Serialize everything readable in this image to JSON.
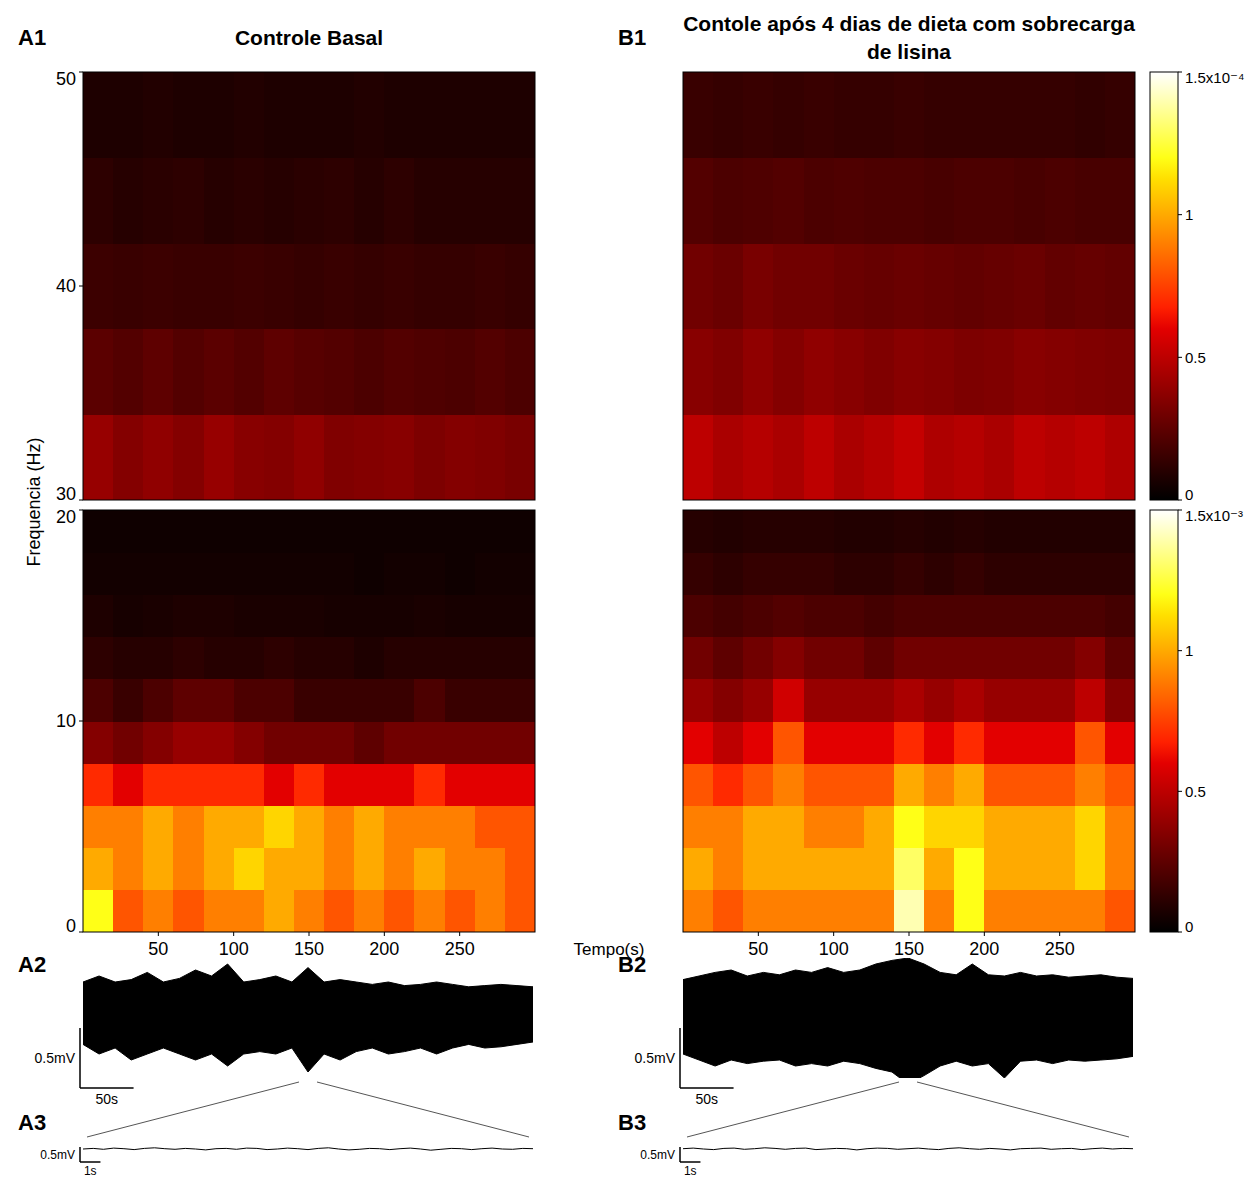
{
  "chart_data": [
    {
      "type": "heatmap",
      "panel": "A1",
      "title": "Controle Basal",
      "y_label": "Frequencia (Hz)",
      "x_label": "Tempo(s)",
      "xlim": [
        0,
        300
      ],
      "xticks": [
        50,
        100,
        150,
        200,
        250
      ],
      "x": [
        10,
        30,
        50,
        70,
        90,
        110,
        130,
        150,
        170,
        190,
        210,
        230,
        250,
        270,
        290
      ],
      "bands": [
        {
          "ylim": [
            30,
            50
          ],
          "yticks": [
            30,
            40,
            50
          ],
          "y": [
            32,
            36,
            40,
            44,
            48
          ],
          "cells": [
            [
              0.4,
              0.35,
              0.38,
              0.35,
              0.4,
              0.36,
              0.35,
              0.38,
              0.34,
              0.35,
              0.36,
              0.33,
              0.35,
              0.34,
              0.32
            ],
            [
              0.24,
              0.22,
              0.25,
              0.22,
              0.24,
              0.22,
              0.25,
              0.23,
              0.22,
              0.2,
              0.22,
              0.21,
              0.2,
              0.22,
              0.2
            ],
            [
              0.16,
              0.15,
              0.16,
              0.15,
              0.15,
              0.16,
              0.15,
              0.14,
              0.15,
              0.14,
              0.15,
              0.14,
              0.14,
              0.15,
              0.14
            ],
            [
              0.12,
              0.1,
              0.11,
              0.12,
              0.1,
              0.11,
              0.1,
              0.11,
              0.12,
              0.1,
              0.12,
              0.1,
              0.1,
              0.1,
              0.1
            ],
            [
              0.08,
              0.08,
              0.09,
              0.08,
              0.08,
              0.09,
              0.08,
              0.08,
              0.08,
              0.09,
              0.08,
              0.08,
              0.08,
              0.08,
              0.08
            ]
          ]
        },
        {
          "ylim": [
            0,
            20
          ],
          "yticks": [
            0,
            10,
            20
          ],
          "y": [
            1,
            3,
            5,
            7,
            9,
            11,
            13,
            15,
            17,
            19
          ],
          "cells": [
            [
              1.2,
              0.8,
              0.9,
              0.8,
              0.9,
              0.9,
              1.0,
              0.9,
              0.8,
              0.9,
              0.8,
              0.9,
              0.8,
              0.9,
              0.8
            ],
            [
              1.0,
              0.9,
              1.0,
              0.9,
              1.0,
              1.1,
              1.0,
              1.0,
              0.9,
              1.0,
              0.9,
              1.0,
              0.9,
              0.9,
              0.8
            ],
            [
              0.9,
              0.9,
              1.0,
              0.9,
              1.0,
              1.0,
              1.1,
              1.0,
              0.9,
              1.0,
              0.9,
              0.9,
              0.9,
              0.8,
              0.8
            ],
            [
              0.7,
              0.6,
              0.7,
              0.7,
              0.7,
              0.7,
              0.6,
              0.7,
              0.6,
              0.6,
              0.6,
              0.7,
              0.6,
              0.6,
              0.6
            ],
            [
              0.35,
              0.3,
              0.35,
              0.4,
              0.4,
              0.35,
              0.3,
              0.3,
              0.3,
              0.25,
              0.3,
              0.3,
              0.3,
              0.3,
              0.3
            ],
            [
              0.2,
              0.15,
              0.2,
              0.25,
              0.25,
              0.2,
              0.2,
              0.15,
              0.15,
              0.15,
              0.15,
              0.2,
              0.15,
              0.15,
              0.15
            ],
            [
              0.12,
              0.1,
              0.1,
              0.12,
              0.1,
              0.1,
              0.12,
              0.1,
              0.1,
              0.08,
              0.1,
              0.1,
              0.1,
              0.1,
              0.1
            ],
            [
              0.08,
              0.06,
              0.07,
              0.08,
              0.08,
              0.07,
              0.07,
              0.07,
              0.06,
              0.06,
              0.06,
              0.07,
              0.06,
              0.06,
              0.06
            ],
            [
              0.05,
              0.05,
              0.05,
              0.05,
              0.05,
              0.05,
              0.05,
              0.05,
              0.05,
              0.04,
              0.05,
              0.05,
              0.04,
              0.05,
              0.05
            ],
            [
              0.04,
              0.04,
              0.04,
              0.04,
              0.04,
              0.04,
              0.04,
              0.04,
              0.04,
              0.04,
              0.04,
              0.04,
              0.04,
              0.04,
              0.04
            ]
          ]
        }
      ]
    },
    {
      "type": "heatmap",
      "panel": "B1",
      "title": "Contole após 4 dias de dieta com sobrecarga de lisina",
      "xlim": [
        0,
        300
      ],
      "xticks": [
        50,
        100,
        150,
        200,
        250
      ],
      "tick_labels": "x",
      "x": [
        10,
        30,
        50,
        70,
        90,
        110,
        130,
        150,
        170,
        190,
        210,
        230,
        250,
        270,
        290
      ],
      "bands": [
        {
          "ylim": [
            30,
            50
          ],
          "y": [
            32,
            36,
            40,
            44,
            48
          ],
          "cells": [
            [
              0.5,
              0.45,
              0.48,
              0.45,
              0.5,
              0.45,
              0.48,
              0.52,
              0.46,
              0.48,
              0.45,
              0.5,
              0.48,
              0.5,
              0.46
            ],
            [
              0.36,
              0.34,
              0.38,
              0.35,
              0.38,
              0.36,
              0.34,
              0.36,
              0.35,
              0.33,
              0.34,
              0.36,
              0.35,
              0.34,
              0.33
            ],
            [
              0.3,
              0.28,
              0.32,
              0.3,
              0.3,
              0.28,
              0.27,
              0.28,
              0.27,
              0.26,
              0.27,
              0.28,
              0.26,
              0.27,
              0.26
            ],
            [
              0.22,
              0.2,
              0.21,
              0.22,
              0.2,
              0.21,
              0.2,
              0.2,
              0.19,
              0.2,
              0.2,
              0.19,
              0.2,
              0.19,
              0.19
            ],
            [
              0.15,
              0.14,
              0.15,
              0.14,
              0.15,
              0.14,
              0.14,
              0.15,
              0.14,
              0.14,
              0.14,
              0.14,
              0.14,
              0.13,
              0.14
            ]
          ],
          "colorbar": {
            "range": [
              0,
              1.5
            ],
            "ticks": [
              0,
              0.5,
              1,
              {
                "value": 1.5,
                "label": "1.5x10⁻⁴"
              }
            ]
          }
        },
        {
          "ylim": [
            0,
            20
          ],
          "y": [
            1,
            3,
            5,
            7,
            9,
            11,
            13,
            15,
            17,
            19
          ],
          "cells": [
            [
              0.9,
              0.8,
              0.9,
              0.9,
              0.9,
              0.9,
              0.9,
              1.4,
              0.9,
              1.2,
              0.9,
              0.9,
              0.9,
              0.9,
              0.8
            ],
            [
              1.0,
              0.9,
              1.0,
              1.0,
              1.0,
              1.0,
              1.0,
              1.3,
              1.0,
              1.2,
              1.0,
              1.0,
              1.0,
              1.1,
              0.9
            ],
            [
              0.9,
              0.9,
              1.0,
              1.0,
              0.9,
              0.9,
              1.0,
              1.2,
              1.1,
              1.1,
              1.0,
              1.0,
              1.0,
              1.1,
              0.9
            ],
            [
              0.8,
              0.7,
              0.8,
              0.9,
              0.8,
              0.8,
              0.8,
              1.0,
              0.9,
              1.0,
              0.8,
              0.8,
              0.8,
              0.9,
              0.8
            ],
            [
              0.6,
              0.5,
              0.6,
              0.8,
              0.6,
              0.6,
              0.6,
              0.7,
              0.6,
              0.7,
              0.6,
              0.6,
              0.6,
              0.8,
              0.6
            ],
            [
              0.4,
              0.35,
              0.4,
              0.55,
              0.4,
              0.4,
              0.4,
              0.45,
              0.4,
              0.45,
              0.4,
              0.4,
              0.4,
              0.5,
              0.35
            ],
            [
              0.3,
              0.25,
              0.3,
              0.35,
              0.3,
              0.3,
              0.25,
              0.3,
              0.3,
              0.3,
              0.3,
              0.3,
              0.3,
              0.35,
              0.25
            ],
            [
              0.2,
              0.18,
              0.2,
              0.22,
              0.2,
              0.2,
              0.18,
              0.2,
              0.2,
              0.2,
              0.2,
              0.2,
              0.2,
              0.2,
              0.18
            ],
            [
              0.14,
              0.12,
              0.14,
              0.14,
              0.14,
              0.12,
              0.12,
              0.14,
              0.12,
              0.14,
              0.12,
              0.12,
              0.12,
              0.12,
              0.12
            ],
            [
              0.1,
              0.09,
              0.1,
              0.1,
              0.1,
              0.09,
              0.09,
              0.1,
              0.09,
              0.1,
              0.09,
              0.09,
              0.09,
              0.09,
              0.09
            ]
          ],
          "colorbar": {
            "range": [
              0,
              1.5
            ],
            "ticks": [
              0,
              0.5,
              1,
              {
                "value": 1.5,
                "label": "1.5x10⁻³"
              }
            ]
          }
        }
      ]
    },
    {
      "type": "area",
      "panel": "A2",
      "color": "#000000",
      "tick_labels": false,
      "xlim": [
        0,
        420
      ],
      "ylim": [
        -0.5,
        0.5
      ],
      "x": [
        0,
        15,
        30,
        45,
        60,
        75,
        90,
        105,
        120,
        135,
        150,
        165,
        180,
        195,
        210,
        225,
        240,
        255,
        270,
        285,
        300,
        315,
        330,
        345,
        360,
        375,
        390,
        405,
        420
      ],
      "upper": [
        0.3,
        0.35,
        0.3,
        0.32,
        0.38,
        0.3,
        0.33,
        0.4,
        0.35,
        0.45,
        0.3,
        0.32,
        0.35,
        0.3,
        0.42,
        0.3,
        0.32,
        0.3,
        0.28,
        0.3,
        0.27,
        0.28,
        0.3,
        0.28,
        0.26,
        0.27,
        0.28,
        0.27,
        0.26
      ],
      "lower": [
        -0.22,
        -0.3,
        -0.25,
        -0.35,
        -0.3,
        -0.25,
        -0.3,
        -0.35,
        -0.3,
        -0.4,
        -0.3,
        -0.28,
        -0.3,
        -0.25,
        -0.45,
        -0.3,
        -0.35,
        -0.28,
        -0.25,
        -0.3,
        -0.28,
        -0.25,
        -0.3,
        -0.25,
        -0.22,
        -0.25,
        -0.24,
        -0.22,
        -0.2
      ],
      "scale_bar": {
        "y": 0.5,
        "y_label": "0.5mV",
        "x": 50,
        "x_label": "50s"
      }
    },
    {
      "type": "line",
      "panel": "A3",
      "color": "#000000",
      "tick_labels": false,
      "xlim": [
        0,
        22
      ],
      "ylim": [
        -0.3,
        0.3
      ],
      "x": [
        0,
        0.5,
        1,
        1.5,
        2,
        2.5,
        3,
        3.5,
        4,
        4.5,
        5,
        5.5,
        6,
        6.5,
        7,
        7.5,
        8,
        8.5,
        9,
        9.5,
        10,
        10.5,
        11,
        11.5,
        12,
        12.5,
        13,
        13.5,
        14,
        14.5,
        15,
        15.5,
        16,
        16.5,
        17,
        17.5,
        18,
        18.5,
        19,
        19.5,
        20,
        20.5,
        21,
        21.5,
        22
      ],
      "values": [
        0,
        0.02,
        -0.01,
        0.03,
        0.01,
        -0.02,
        0.02,
        0.04,
        0.01,
        -0.01,
        0.02,
        0,
        -0.03,
        0.01,
        0.02,
        -0.01,
        0.03,
        0.02,
        -0.02,
        0,
        0.03,
        0.01,
        -0.02,
        0.02,
        0.04,
        0,
        -0.03,
        -0.01,
        0.02,
        0.01,
        -0.02,
        0.01,
        0.03,
        0,
        -0.04,
        -0.01,
        0.02,
        0.01,
        -0.02,
        0.01,
        0.03,
        0,
        -0.01,
        0.02,
        0.01
      ],
      "scale_bar": {
        "y": 0.5,
        "y_label": "0.5mV",
        "x": 1,
        "x_label": "1s"
      }
    },
    {
      "type": "area",
      "panel": "B2",
      "color": "#000000",
      "tick_labels": false,
      "xlim": [
        0,
        420
      ],
      "ylim": [
        -0.5,
        0.5
      ],
      "x": [
        0,
        15,
        30,
        45,
        60,
        75,
        90,
        105,
        120,
        135,
        150,
        165,
        180,
        195,
        210,
        225,
        240,
        255,
        270,
        285,
        300,
        315,
        330,
        345,
        360,
        375,
        390,
        405,
        420
      ],
      "upper": [
        0.32,
        0.35,
        0.38,
        0.4,
        0.35,
        0.38,
        0.36,
        0.4,
        0.38,
        0.42,
        0.38,
        0.4,
        0.45,
        0.48,
        0.5,
        0.45,
        0.38,
        0.36,
        0.45,
        0.36,
        0.35,
        0.38,
        0.35,
        0.36,
        0.34,
        0.35,
        0.36,
        0.34,
        0.33
      ],
      "lower": [
        -0.3,
        -0.35,
        -0.4,
        -0.35,
        -0.38,
        -0.36,
        -0.35,
        -0.4,
        -0.38,
        -0.4,
        -0.36,
        -0.38,
        -0.42,
        -0.45,
        -0.55,
        -0.48,
        -0.4,
        -0.36,
        -0.4,
        -0.38,
        -0.5,
        -0.36,
        -0.35,
        -0.38,
        -0.35,
        -0.36,
        -0.35,
        -0.34,
        -0.32
      ],
      "scale_bar": {
        "y": 0.5,
        "y_label": "0.5mV",
        "x": 50,
        "x_label": "50s"
      }
    },
    {
      "type": "line",
      "panel": "B3",
      "color": "#000000",
      "tick_labels": false,
      "xlim": [
        0,
        22
      ],
      "ylim": [
        -0.3,
        0.3
      ],
      "x": [
        0,
        0.5,
        1,
        1.5,
        2,
        2.5,
        3,
        3.5,
        4,
        4.5,
        5,
        5.5,
        6,
        6.5,
        7,
        7.5,
        8,
        8.5,
        9,
        9.5,
        10,
        10.5,
        11,
        11.5,
        12,
        12.5,
        13,
        13.5,
        14,
        14.5,
        15,
        15.5,
        16,
        16.5,
        17,
        17.5,
        18,
        18.5,
        19,
        19.5,
        20,
        20.5,
        21,
        21.5,
        22
      ],
      "values": [
        0.01,
        0.03,
        0,
        -0.02,
        0.02,
        0.03,
        -0.01,
        0.01,
        0.04,
        0.02,
        -0.01,
        0.02,
        0.03,
        -0.02,
        0,
        0.02,
        0.01,
        -0.03,
        0.01,
        0.03,
        0.02,
        -0.01,
        0.01,
        0.03,
        0,
        -0.02,
        0.02,
        0.04,
        0.01,
        -0.01,
        0.02,
        0,
        -0.03,
        0.01,
        0.02,
        0.03,
        -0.01,
        0.01,
        0.02,
        -0.02,
        0.01,
        0.03,
        0,
        0.02,
        0.01
      ],
      "scale_bar": {
        "y": 0.5,
        "y_label": "0.5mV",
        "x": 1,
        "x_label": "1s"
      }
    }
  ]
}
